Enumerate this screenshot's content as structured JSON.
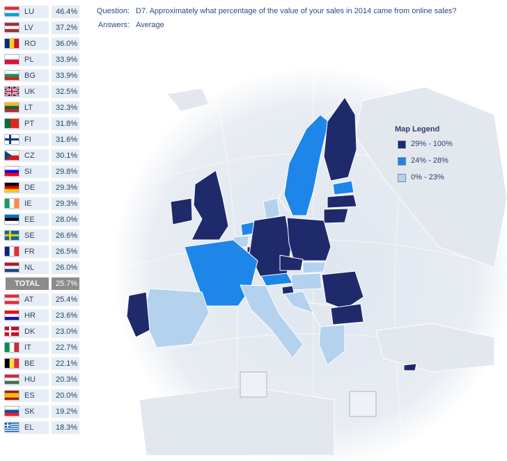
{
  "question_label": "Question:",
  "question_text": "D7. Approximately what percentage of the value of your sales in 2014 came from online sales?",
  "answers_label": "Answers:",
  "answers_text": "Average",
  "legend": {
    "title": "Map Legend",
    "items": [
      {
        "label": "29% - 100%",
        "color": "#1f2a6b"
      },
      {
        "label": "24% - 28%",
        "color": "#1e86e8"
      },
      {
        "label": "0% - 23%",
        "color": "#b4d2ee"
      }
    ]
  },
  "colors": {
    "high": "#1f2a6b",
    "mid": "#1e86e8",
    "low": "#b4d2ee",
    "nodata": "#e3e8ef",
    "total_bg": "#8c8c8c",
    "row_bg": "#e6edf5"
  },
  "chart_data": {
    "type": "table",
    "title": "D7. Approximately what percentage of the value of your sales in 2014 came from online sales?",
    "categories": [
      "LU",
      "LV",
      "RO",
      "PL",
      "BG",
      "UK",
      "LT",
      "PT",
      "FI",
      "CZ",
      "SI",
      "DE",
      "IE",
      "EE",
      "SE",
      "FR",
      "NL",
      "TOTAL",
      "AT",
      "HR",
      "DK",
      "IT",
      "BE",
      "HU",
      "ES",
      "SK",
      "EL"
    ],
    "values": [
      "46.4%",
      "37.2%",
      "36.0%",
      "33.9%",
      "33.9%",
      "32.5%",
      "32.3%",
      "31.8%",
      "31.6%",
      "30.1%",
      "29.8%",
      "29.3%",
      "29.3%",
      "28.0%",
      "26.6%",
      "26.5%",
      "26.0%",
      "25.7%",
      "25.4%",
      "23.6%",
      "23.0%",
      "22.7%",
      "22.1%",
      "20.3%",
      "20.0%",
      "19.2%",
      "18.3%"
    ],
    "series": [
      {
        "name": "Average",
        "values": [
          46.4,
          37.2,
          36.0,
          33.9,
          33.9,
          32.5,
          32.3,
          31.8,
          31.6,
          30.1,
          29.8,
          29.3,
          29.3,
          28.0,
          26.6,
          26.5,
          26.0,
          25.7,
          25.4,
          23.6,
          23.0,
          22.7,
          22.1,
          20.3,
          20.0,
          19.2,
          18.3
        ]
      }
    ]
  }
}
